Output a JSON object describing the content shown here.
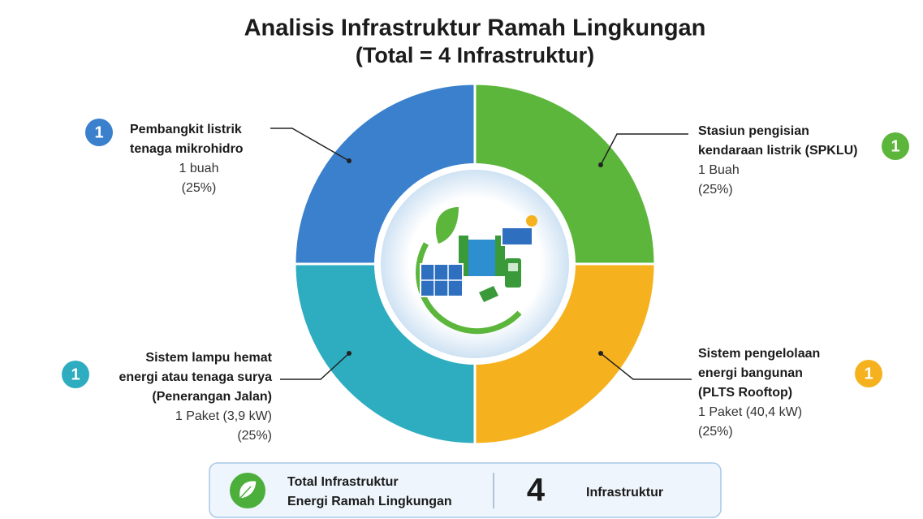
{
  "chart_data": {
    "type": "donut",
    "title": "Analisis Infrastruktur Ramah Lingkungan",
    "subtitle": "(Total = 4 Infrastruktur)",
    "categories": [
      [
        "Stasiun pengisian",
        "kendaraan listrik (SPKLU)"
      ],
      [
        "Sistem pengelolaan",
        "energi bangunan",
        "(PLTS Rooftop)"
      ],
      [
        "Sistem lampu hemat",
        "energi atau tenaga surya",
        "(Penerangan Jalan)"
      ],
      [
        "Pembangkit listrik",
        "tenaga mikrohidro"
      ]
    ],
    "counts": [
      1,
      1,
      1,
      1
    ],
    "details": [
      "1 Buah",
      "1 Paket (40,4 kW)",
      "1 Paket (3,9 kW)",
      "1 buah"
    ],
    "values": [
      25,
      25,
      25,
      25
    ],
    "value_labels": [
      "(25%)",
      "(25%)",
      "(25%)",
      "(25%)"
    ],
    "colors": [
      "#5cb63c",
      "#f6b21e",
      "#2eadc0",
      "#3a80cc"
    ],
    "total": {
      "label": [
        "Total Infrastruktur",
        "Energi Ramah Lingkungan"
      ],
      "value": 4,
      "unit": "Infrastruktur"
    }
  }
}
